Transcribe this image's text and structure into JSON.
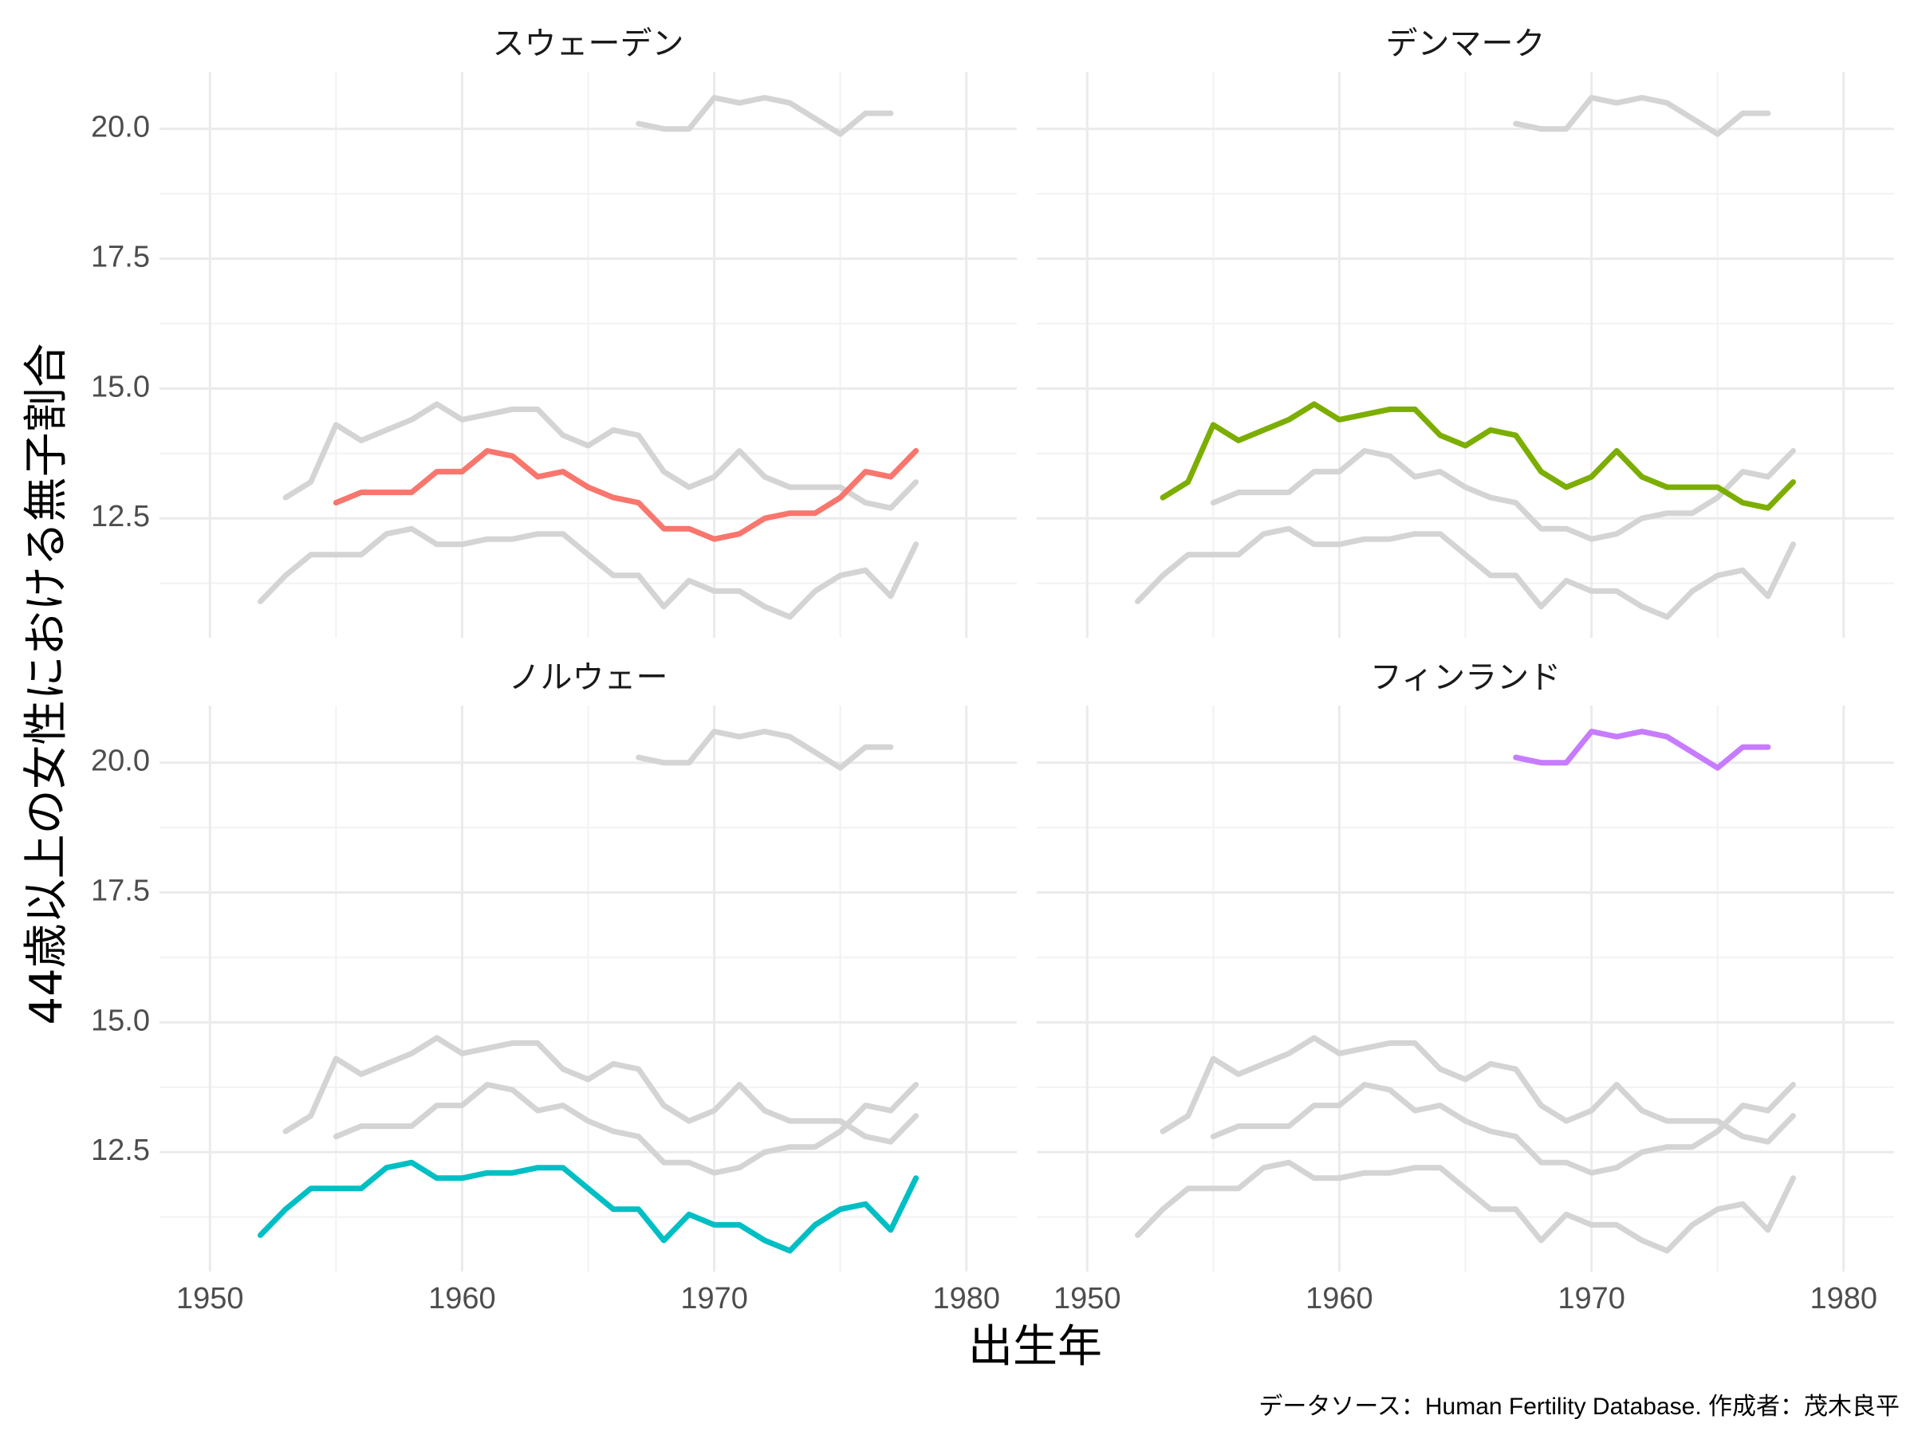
{
  "chart_data": {
    "type": "line",
    "xlabel": "出生年",
    "ylabel": "44歳以上の女性における無子割合",
    "caption": "データソース：Human Fertility Database. 作成者：茂木良平",
    "xlim": [
      1948,
      1982
    ],
    "ylim": [
      10.2,
      21.1
    ],
    "x_ticks": [
      1950,
      1960,
      1970,
      1980
    ],
    "x_tick_labels": [
      "1950",
      "1960",
      "1970",
      "1980"
    ],
    "y_ticks": [
      12.5,
      15.0,
      17.5,
      20.0
    ],
    "y_tick_labels": [
      "12.5",
      "15.0",
      "17.5",
      "20.0"
    ],
    "grid": true,
    "legend": "none",
    "background_color": "#d4d4d4",
    "panels": [
      {
        "title": "スウェーデン",
        "highlight": "sweden",
        "color": "#f8766d"
      },
      {
        "title": "デンマーク",
        "highlight": "denmark",
        "color": "#7cae00"
      },
      {
        "title": "ノルウェー",
        "highlight": "norway",
        "color": "#00bfc4"
      },
      {
        "title": "フィンランド",
        "highlight": "finland",
        "color": "#c77cff"
      }
    ],
    "series": {
      "sweden": {
        "x": [
          1955,
          1956,
          1957,
          1958,
          1959,
          1960,
          1961,
          1962,
          1963,
          1964,
          1965,
          1966,
          1967,
          1968,
          1969,
          1970,
          1971,
          1972,
          1973,
          1974,
          1975,
          1976,
          1977,
          1978
        ],
        "values": [
          12.8,
          13.0,
          13.0,
          13.0,
          13.4,
          13.4,
          13.8,
          13.7,
          13.3,
          13.4,
          13.1,
          12.9,
          12.8,
          12.3,
          12.3,
          12.1,
          12.2,
          12.5,
          12.6,
          12.6,
          12.9,
          13.4,
          13.3,
          13.8
        ]
      },
      "denmark": {
        "x": [
          1953,
          1954,
          1955,
          1956,
          1957,
          1958,
          1959,
          1960,
          1961,
          1962,
          1963,
          1964,
          1965,
          1966,
          1967,
          1968,
          1969,
          1970,
          1971,
          1972,
          1973,
          1974,
          1975,
          1976,
          1977,
          1978
        ],
        "values": [
          12.9,
          13.2,
          14.3,
          14.0,
          14.2,
          14.4,
          14.7,
          14.4,
          14.5,
          14.6,
          14.6,
          14.1,
          13.9,
          14.2,
          14.1,
          13.4,
          13.1,
          13.3,
          13.8,
          13.3,
          13.1,
          13.1,
          13.1,
          12.8,
          12.7,
          13.2
        ]
      },
      "norway": {
        "x": [
          1952,
          1953,
          1954,
          1955,
          1956,
          1957,
          1958,
          1959,
          1960,
          1961,
          1962,
          1963,
          1964,
          1965,
          1966,
          1967,
          1968,
          1969,
          1970,
          1971,
          1972,
          1973,
          1974,
          1975,
          1976,
          1977,
          1978
        ],
        "values": [
          10.9,
          11.4,
          11.8,
          11.8,
          11.8,
          12.2,
          12.3,
          12.0,
          12.0,
          12.1,
          12.1,
          12.2,
          12.2,
          11.8,
          11.4,
          11.4,
          10.8,
          11.3,
          11.1,
          11.1,
          10.8,
          10.6,
          11.1,
          11.4,
          11.5,
          11.0,
          12.0
        ]
      },
      "finland": {
        "x": [
          1967,
          1968,
          1969,
          1970,
          1971,
          1972,
          1973,
          1974,
          1975,
          1976,
          1977
        ],
        "values": [
          20.1,
          20.0,
          20.0,
          20.6,
          20.5,
          20.6,
          20.5,
          20.2,
          19.9,
          20.3,
          20.3
        ]
      }
    }
  }
}
